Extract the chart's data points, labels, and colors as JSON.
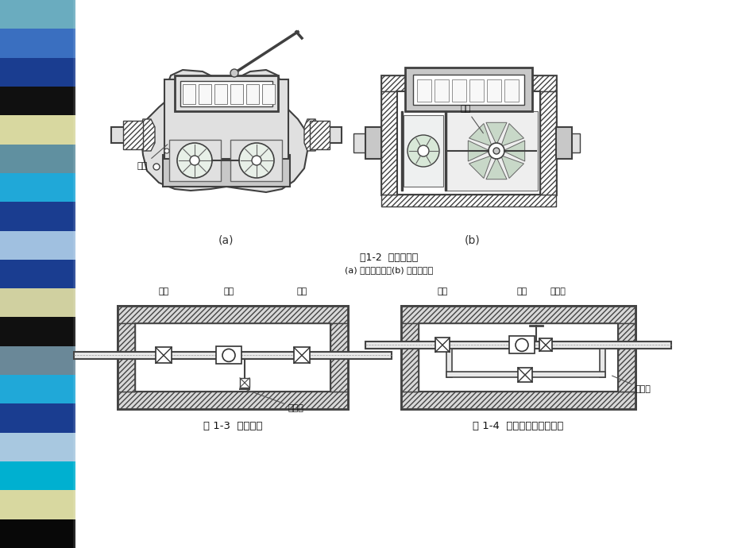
{
  "bg_color": "#f0ede8",
  "page_bg": "#ffffff",
  "sidebar_colors": [
    "#6aacbf",
    "#3a6fc0",
    "#1a3d90",
    "#101010",
    "#d8d8a0",
    "#6090a0",
    "#20a8d8",
    "#1a3d90",
    "#a0c0e0",
    "#1a3d90",
    "#d0d0a0",
    "#101010",
    "#6a8898",
    "#20a8d8",
    "#1a3d90",
    "#a8c8e0",
    "#00b0d0",
    "#d8d8a0",
    "#080808"
  ],
  "fig1_2_title": "图1-2  流速式水表",
  "fig1_2_subtitle": "(a) 旋翅式水表；(b) 螺翅式水表",
  "fig1_3_title": "图 1-3  水表节点",
  "fig1_4_title": "图 1-4  有旁通管的水表节点",
  "label_a": "(a)",
  "label_b": "(b)",
  "label_yeye_left": "叶轮",
  "label_yeye_right": "叶轮",
  "label_famen_left": "阀门",
  "label_shuibiao_left": "水表",
  "label_famen2_left": "阀门",
  "label_xieshuimen": "泄水门",
  "label_famen_right": "阀门",
  "label_shuibiao_right": "水表",
  "label_xieshuikou": "泄水口",
  "label_pangtong": "旁通管"
}
